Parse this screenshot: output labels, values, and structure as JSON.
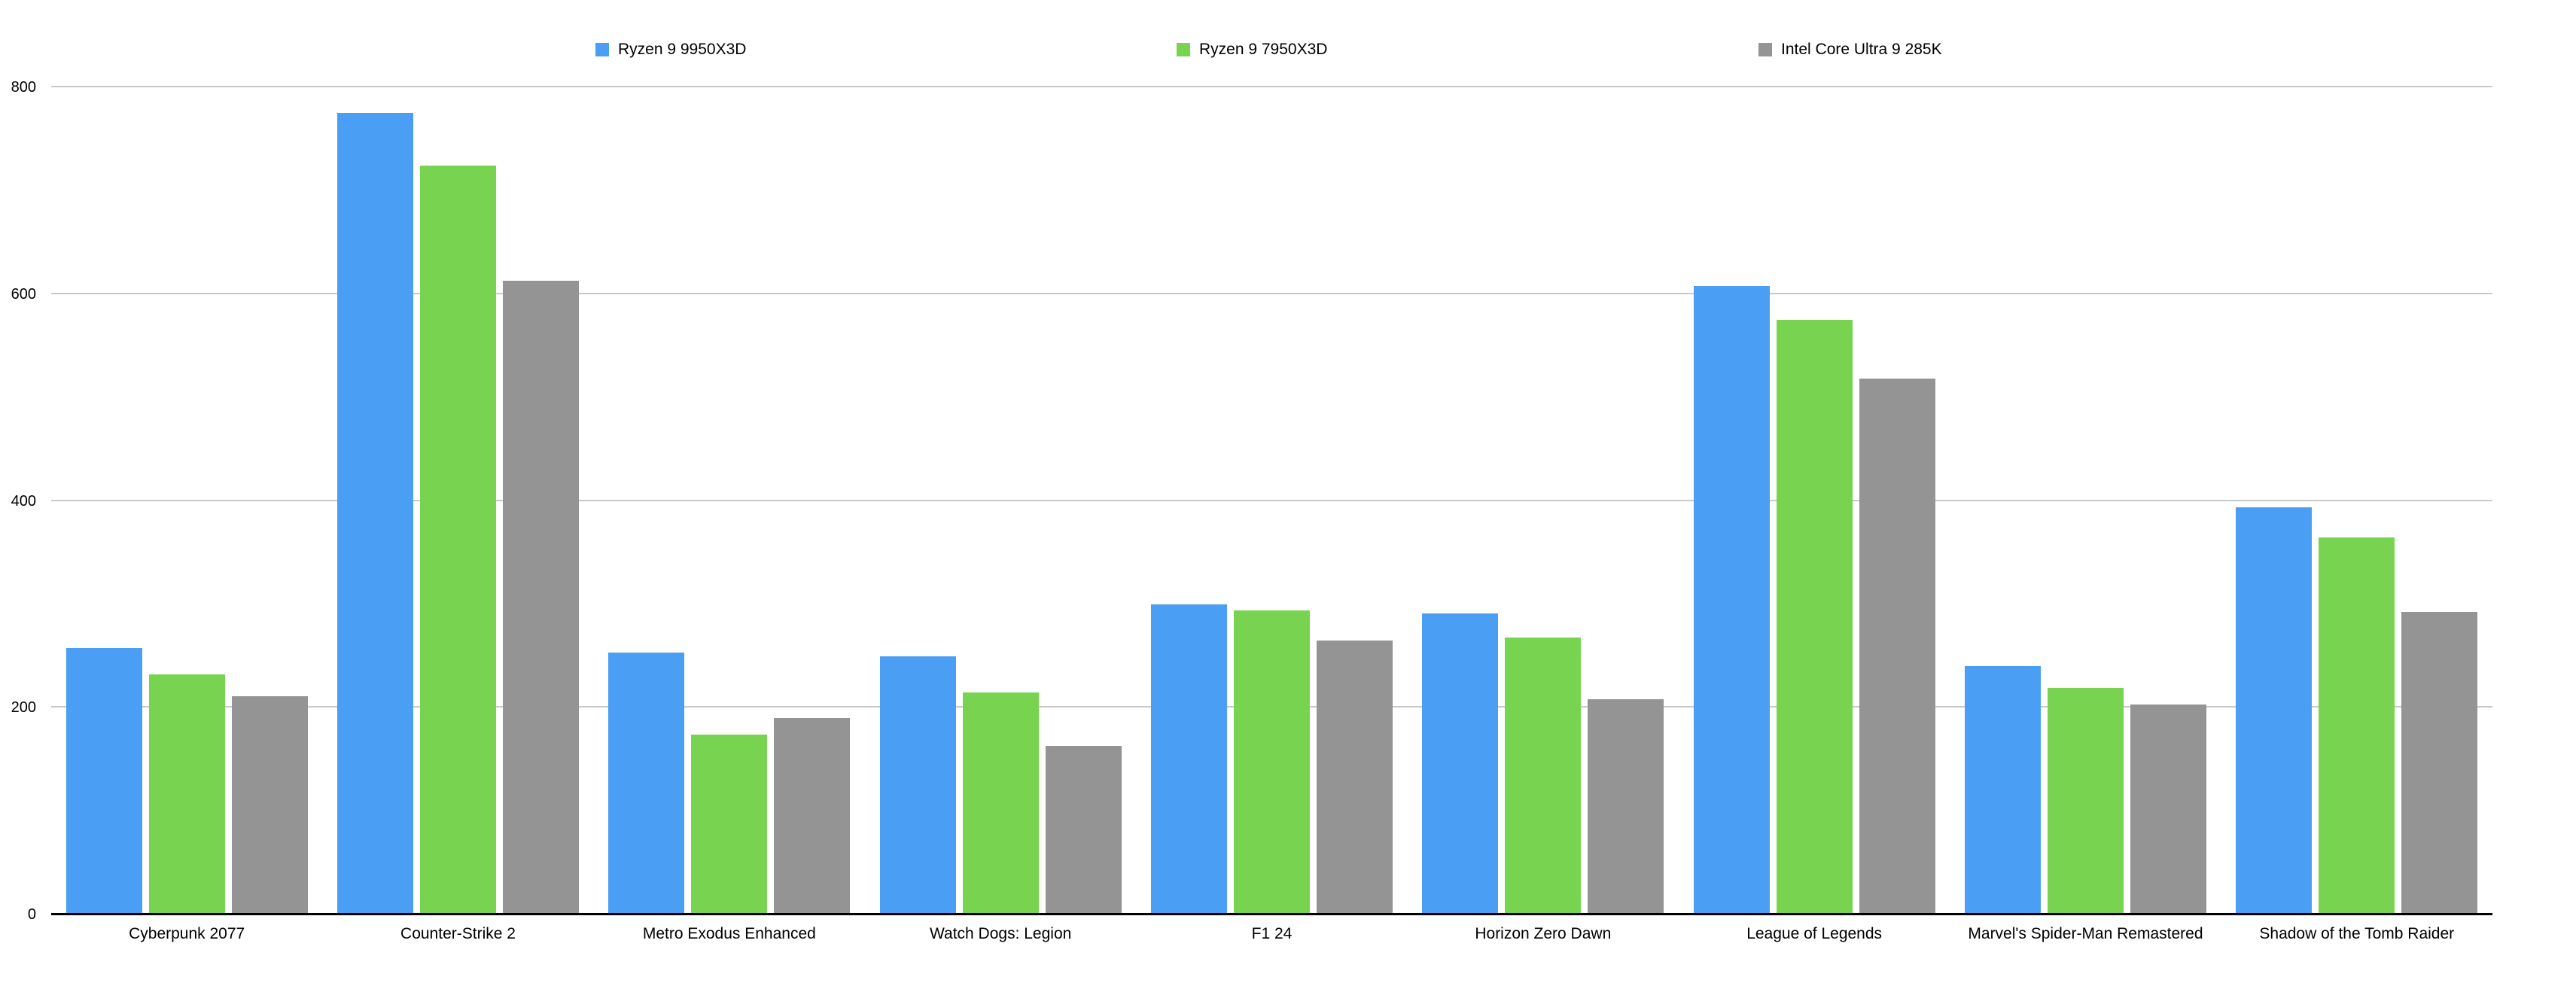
{
  "chart_data": {
    "type": "bar",
    "title": "",
    "xlabel": "",
    "ylabel": "",
    "categories": [
      "Cyberpunk 2077",
      "Counter-Strike 2",
      "Metro Exodus Enhanced",
      "Watch Dogs: Legion",
      "F1 24",
      "Horizon Zero Dawn",
      "League of Legends",
      "Marvel's Spider-Man Remastered",
      "Shadow of the Tomb Raider"
    ],
    "series": [
      {
        "name": "Ryzen 9 9950X3D",
        "color": "#4a9ff5",
        "values": [
          258,
          775,
          253,
          250,
          300,
          291,
          608,
          240,
          394
        ]
      },
      {
        "name": "Ryzen 9 7950X3D",
        "color": "#78d450",
        "values": [
          232,
          724,
          174,
          215,
          294,
          268,
          575,
          219,
          365
        ]
      },
      {
        "name": "Intel Core Ultra 9 285K",
        "color": "#949494",
        "values": [
          211,
          613,
          190,
          163,
          265,
          208,
          518,
          203,
          293
        ]
      }
    ],
    "y_axis": {
      "ticks": [
        0,
        200,
        400,
        600,
        800
      ],
      "min": 0,
      "max": 800,
      "tick_labels": [
        "0",
        "200",
        "400",
        "600",
        "800"
      ]
    },
    "grid": true,
    "legend_position": "top",
    "colors": {
      "background": "#ffffff",
      "gridline": "#c9c9c9",
      "axis_line": "#000000",
      "text": "#000000"
    }
  }
}
